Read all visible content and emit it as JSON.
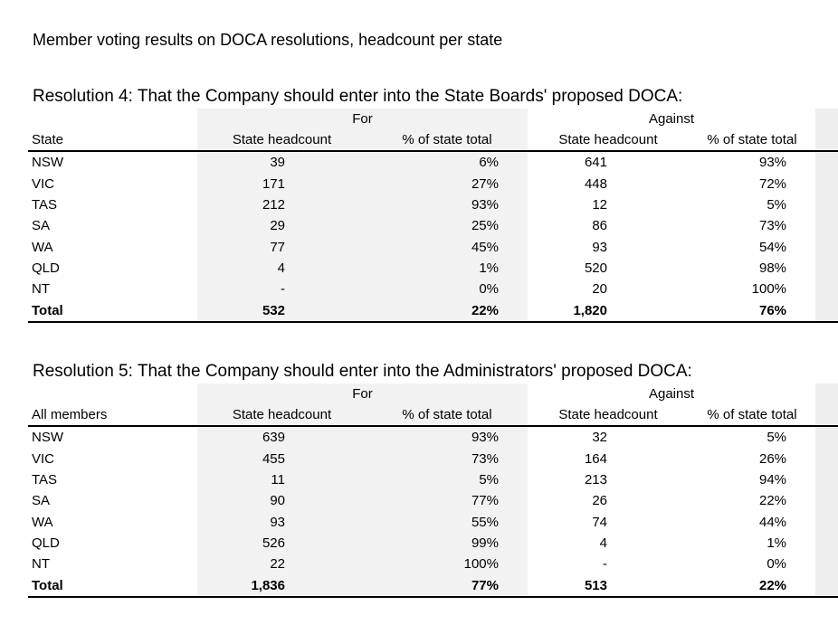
{
  "page_title": "Member voting results on DOCA resolutions, headcount per state",
  "resolutions": [
    {
      "title": "Resolution 4: That the Company should enter into the State Boards' proposed DOCA:",
      "group_for": "For",
      "group_against": "Against",
      "headers": [
        "State",
        "State headcount",
        "% of state total",
        "State headcount",
        "% of state total"
      ],
      "rows": [
        [
          "NSW",
          "39",
          "6%",
          "641",
          "93%"
        ],
        [
          "VIC",
          "171",
          "27%",
          "448",
          "72%"
        ],
        [
          "TAS",
          "212",
          "93%",
          "12",
          "5%"
        ],
        [
          "SA",
          "29",
          "25%",
          "86",
          "73%"
        ],
        [
          "WA",
          "77",
          "45%",
          "93",
          "54%"
        ],
        [
          "QLD",
          "4",
          "1%",
          "520",
          "98%"
        ],
        [
          "NT",
          "-",
          "0%",
          "20",
          "100%"
        ]
      ],
      "total": [
        "Total",
        "532",
        "22%",
        "1,820",
        "76%"
      ]
    },
    {
      "title": "Resolution 5: That the Company should enter into the Administrators' proposed DOCA:",
      "group_for": "For",
      "group_against": "Against",
      "headers": [
        "All members",
        "State headcount",
        "% of state total",
        "State headcount",
        "% of state total"
      ],
      "rows": [
        [
          "NSW",
          "639",
          "93%",
          "32",
          "5%"
        ],
        [
          "VIC",
          "455",
          "73%",
          "164",
          "26%"
        ],
        [
          "TAS",
          "11",
          "5%",
          "213",
          "94%"
        ],
        [
          "SA",
          "90",
          "77%",
          "26",
          "22%"
        ],
        [
          "WA",
          "93",
          "55%",
          "74",
          "44%"
        ],
        [
          "QLD",
          "526",
          "99%",
          "4",
          "1%"
        ],
        [
          "NT",
          "22",
          "100%",
          "-",
          "0%"
        ]
      ],
      "total": [
        "Total",
        "1,836",
        "77%",
        "513",
        "22%"
      ]
    }
  ]
}
